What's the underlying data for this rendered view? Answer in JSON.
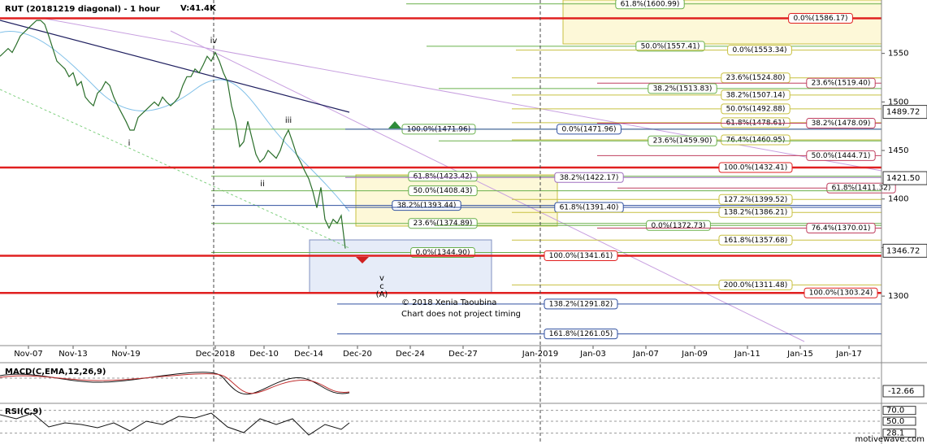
{
  "chart_data": {
    "type": "line",
    "title": "RUT (20181219 diagonal) - 1 hour",
    "volume_label": "V:41.4K",
    "xlim": [
      0,
      217
    ],
    "xticks": [
      {
        "value": 7,
        "label": "Nov-07"
      },
      {
        "value": 18,
        "label": "Nov-13"
      },
      {
        "value": 31,
        "label": "Nov-19"
      },
      {
        "value": 53,
        "label": "Dec-2018"
      },
      {
        "value": 65,
        "label": "Dec-10"
      },
      {
        "value": 76,
        "label": "Dec-14"
      },
      {
        "value": 88,
        "label": "Dec-20"
      },
      {
        "value": 101,
        "label": "Dec-24"
      },
      {
        "value": 114,
        "label": "Dec-27"
      },
      {
        "value": 133,
        "label": "Jan-2019"
      },
      {
        "value": 146,
        "label": "Jan-03"
      },
      {
        "value": 159,
        "label": "Jan-07"
      },
      {
        "value": 171,
        "label": "Jan-09"
      },
      {
        "value": 184,
        "label": "Jan-11"
      },
      {
        "value": 197,
        "label": "Jan-15"
      },
      {
        "value": 209,
        "label": "Jan-17"
      }
    ],
    "ylim": [
      1249,
      1605
    ],
    "yticks": [
      1300,
      1350,
      1400,
      1450,
      1500,
      1550
    ],
    "price_labels": [
      {
        "value": 1489.72,
        "label": "1489.72"
      },
      {
        "value": 1421.5,
        "label": "1421.50"
      },
      {
        "value": 1346.72,
        "label": "1346.72"
      }
    ],
    "series": [
      {
        "name": "RUT",
        "color": "#2a6e2a",
        "x": [
          0,
          1,
          2,
          3,
          4,
          5,
          6,
          7,
          8,
          9,
          10,
          11,
          12,
          13,
          14,
          15,
          16,
          17,
          18,
          19,
          20,
          21,
          22,
          23,
          24,
          25,
          26,
          27,
          28,
          29,
          30,
          31,
          32,
          33,
          34,
          35,
          36,
          37,
          38,
          39,
          40,
          41,
          42,
          43,
          44,
          45,
          46,
          47,
          48,
          49,
          50,
          51,
          52,
          53,
          54,
          55,
          56,
          57,
          58,
          59,
          60,
          61,
          62,
          63,
          64,
          65,
          66,
          67,
          68,
          69,
          70,
          71,
          72,
          73,
          74,
          75,
          76,
          77,
          78,
          79,
          80,
          81,
          82,
          83,
          84,
          85
        ],
        "values": [
          1547,
          1551,
          1555,
          1551,
          1559,
          1568,
          1572,
          1576,
          1580,
          1584,
          1584,
          1580,
          1568,
          1555,
          1542,
          1538,
          1534,
          1526,
          1530,
          1517,
          1521,
          1505,
          1500,
          1496,
          1509,
          1513,
          1521,
          1517,
          1505,
          1496,
          1488,
          1480,
          1471,
          1471,
          1484,
          1488,
          1492,
          1496,
          1500,
          1496,
          1505,
          1500,
          1496,
          1500,
          1505,
          1517,
          1526,
          1526,
          1534,
          1530,
          1538,
          1547,
          1542,
          1551,
          1542,
          1530,
          1521,
          1496,
          1480,
          1454,
          1459,
          1480,
          1463,
          1446,
          1438,
          1442,
          1450,
          1446,
          1442,
          1450,
          1463,
          1471,
          1459,
          1446,
          1438,
          1429,
          1421,
          1408,
          1391,
          1412,
          1379,
          1370,
          1379,
          1375,
          1383,
          1349
        ]
      }
    ],
    "levels": [
      {
        "label": "61.8%(1600.99)",
        "value": 1600.99,
        "color": "#6ab04c"
      },
      {
        "label": "0.0%(1586.17)",
        "value": 1586.17,
        "color": "#e02020"
      },
      {
        "label": "50.0%(1557.41)",
        "value": 1557.41,
        "color": "#6ab04c"
      },
      {
        "label": "0.0%(1553.34)",
        "value": 1553.34,
        "color": "#c8c040"
      },
      {
        "label": "23.6%(1524.80)",
        "value": 1524.8,
        "color": "#c8c040"
      },
      {
        "label": "23.6%(1519.40)",
        "value": 1519.4,
        "color": "#c04060"
      },
      {
        "label": "38.2%(1513.83)",
        "value": 1513.83,
        "color": "#6ab04c"
      },
      {
        "label": "38.2%(1507.14)",
        "value": 1507.14,
        "color": "#c8c040"
      },
      {
        "label": "50.0%(1492.88)",
        "value": 1492.88,
        "color": "#c8c040"
      },
      {
        "label": "61.8%(1478.61)",
        "value": 1478.61,
        "color": "#c8c040"
      },
      {
        "label": "38.2%(1478.09)",
        "value": 1478.09,
        "color": "#c04060"
      },
      {
        "label": "100.0%(1471.96)",
        "value": 1471.96,
        "color": "#6ab04c"
      },
      {
        "label": "0.0%(1471.96)",
        "value": 1471.96,
        "color": "#3050a0"
      },
      {
        "label": "76.4%(1460.95)",
        "value": 1460.95,
        "color": "#c8c040"
      },
      {
        "label": "23.6%(1459.90)",
        "value": 1459.9,
        "color": "#6ab04c"
      },
      {
        "label": "50.0%(1444.71)",
        "value": 1444.71,
        "color": "#c04060"
      },
      {
        "label": "100.0%(1432.41)",
        "value": 1432.41,
        "color": "#e02020"
      },
      {
        "label": "61.8%(1423.42)",
        "value": 1423.42,
        "color": "#6ab04c"
      },
      {
        "label": "38.2%(1422.17)",
        "value": 1422.17,
        "color": "#a070c0"
      },
      {
        "label": "61.8%(1411.32)",
        "value": 1411.32,
        "color": "#c04060"
      },
      {
        "label": "50.0%(1408.43)",
        "value": 1408.43,
        "color": "#6ab04c"
      },
      {
        "label": "127.2%(1399.52)",
        "value": 1399.52,
        "color": "#c8c040"
      },
      {
        "label": "38.2%(1393.44)",
        "value": 1393.44,
        "color": "#3050a0"
      },
      {
        "label": "61.8%(1391.40)",
        "value": 1391.4,
        "color": "#3050a0"
      },
      {
        "label": "138.2%(1386.21)",
        "value": 1386.21,
        "color": "#c8c040"
      },
      {
        "label": "23.6%(1374.89)",
        "value": 1374.89,
        "color": "#6ab04c"
      },
      {
        "label": "0.0%(1372.73)",
        "value": 1372.73,
        "color": "#6ab04c"
      },
      {
        "label": "76.4%(1370.01)",
        "value": 1370.01,
        "color": "#c04060"
      },
      {
        "label": "161.8%(1357.68)",
        "value": 1357.68,
        "color": "#c8c040"
      },
      {
        "label": "0.0%(1344.90)",
        "value": 1344.9,
        "color": "#6ab04c"
      },
      {
        "label": "100.0%(1341.61)",
        "value": 1341.61,
        "color": "#e02020"
      },
      {
        "label": "200.0%(1311.48)",
        "value": 1311.48,
        "color": "#c8c040"
      },
      {
        "label": "100.0%(1303.24)",
        "value": 1303.24,
        "color": "#e02020"
      },
      {
        "label": "138.2%(1291.82)",
        "value": 1291.82,
        "color": "#3050a0"
      },
      {
        "label": "161.8%(1261.05)",
        "value": 1261.05,
        "color": "#3050a0"
      }
    ],
    "wave_labels": [
      "i",
      "ii",
      "iii",
      "iv",
      "v",
      "c",
      "(A)"
    ],
    "copyright": "© 2018 Xenia Taoubina",
    "note": "Chart does not project timing",
    "macd_label": "MACD(C,EMA,12,26,9)",
    "macd_value": -12.66,
    "rsi_label": "RSI(C,9)",
    "rsi_ticks": [
      {
        "value": 70,
        "label": "70.0"
      },
      {
        "value": 50,
        "label": "50.0"
      },
      {
        "value": 28.1,
        "label": "28.1"
      }
    ],
    "watermark": "motivewave.com"
  }
}
